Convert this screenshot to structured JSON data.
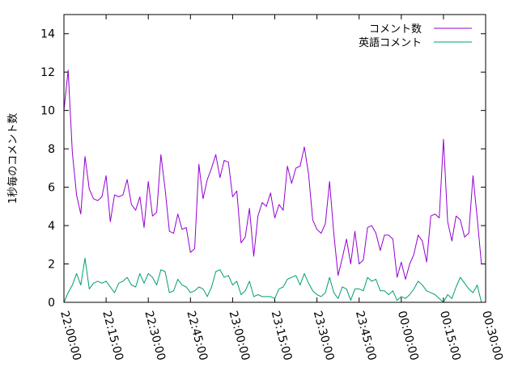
{
  "chart_data": {
    "type": "line",
    "title": "",
    "xlabel": "",
    "ylabel": "1秒毎のコメント数",
    "ylim": [
      0,
      15
    ],
    "y_ticks": [
      "0",
      "2",
      "4",
      "6",
      "8",
      "10",
      "12",
      "14"
    ],
    "x_ticks": [
      "22:00:00",
      "22:15:00",
      "22:30:00",
      "22:45:00",
      "23:00:00",
      "23:15:00",
      "23:30:00",
      "23:45:00",
      "00:00:00",
      "00:15:00",
      "00:30:00"
    ],
    "x_range_minutes": [
      0,
      150
    ],
    "x_step_minutes": 1.5,
    "legend_position": "top-right",
    "series": [
      {
        "name": "コメント数",
        "color": "#9400d3",
        "values": [
          10.0,
          12.1,
          7.8,
          5.6,
          4.6,
          7.6,
          5.9,
          5.4,
          5.3,
          5.5,
          6.6,
          4.2,
          5.6,
          5.5,
          5.6,
          6.4,
          5.1,
          4.8,
          5.5,
          3.9,
          6.3,
          4.5,
          4.7,
          7.7,
          5.9,
          3.7,
          3.6,
          4.6,
          3.8,
          3.9,
          2.6,
          2.8,
          7.2,
          5.4,
          6.4,
          7.0,
          7.7,
          6.5,
          7.4,
          7.3,
          5.5,
          5.8,
          3.1,
          3.4,
          4.9,
          2.4,
          4.5,
          5.2,
          5.0,
          5.7,
          4.4,
          5.1,
          4.8,
          7.1,
          6.2,
          7.0,
          7.1,
          8.1,
          6.7,
          4.3,
          3.8,
          3.6,
          4.1,
          6.3,
          3.6,
          1.4,
          2.3,
          3.3,
          2.0,
          3.7,
          2.0,
          2.2,
          3.9,
          4.0,
          3.6,
          2.7,
          3.5,
          3.5,
          3.3,
          1.3,
          2.1,
          1.2,
          2.0,
          2.5,
          3.5,
          3.2,
          2.1,
          4.5,
          4.6,
          4.4,
          8.5,
          4.2,
          3.2,
          4.5,
          4.3,
          3.4,
          3.6,
          6.6,
          4.4,
          2.0
        ]
      },
      {
        "name": "英語コメント",
        "color": "#009e73",
        "values": [
          0.0,
          0.5,
          0.9,
          1.5,
          0.9,
          2.3,
          0.7,
          1.0,
          1.1,
          1.0,
          1.1,
          0.8,
          0.5,
          1.0,
          1.1,
          1.3,
          0.9,
          0.8,
          1.5,
          1.0,
          1.5,
          1.3,
          0.9,
          1.7,
          1.6,
          0.5,
          0.6,
          1.2,
          0.9,
          0.8,
          0.5,
          0.6,
          0.8,
          0.7,
          0.3,
          0.8,
          1.6,
          1.7,
          1.3,
          1.4,
          0.9,
          1.1,
          0.4,
          0.6,
          1.1,
          0.3,
          0.4,
          0.3,
          0.3,
          0.3,
          0.2,
          0.7,
          0.8,
          1.2,
          1.3,
          1.4,
          0.9,
          1.5,
          1.0,
          0.6,
          0.4,
          0.3,
          0.5,
          1.3,
          0.5,
          0.2,
          0.8,
          0.7,
          0.1,
          0.7,
          0.7,
          0.6,
          1.3,
          1.1,
          1.2,
          0.6,
          0.6,
          0.4,
          0.6,
          0.1,
          0.3,
          0.2,
          0.4,
          0.7,
          1.1,
          0.9,
          0.6,
          0.5,
          0.4,
          0.2,
          0.0,
          0.4,
          0.2,
          0.8,
          1.3,
          1.0,
          0.7,
          0.5,
          0.9,
          0.0
        ]
      }
    ]
  }
}
